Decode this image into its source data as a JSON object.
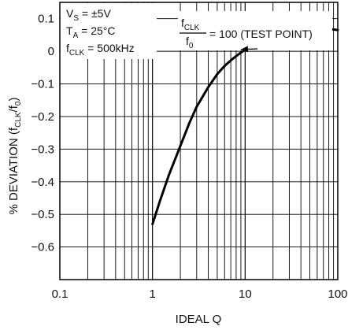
{
  "chart_data": {
    "type": "line",
    "xlabel": "IDEAL Q",
    "ylabel": "% DEVIATION (fCLK/f0)",
    "xscale": "log",
    "xlim": [
      0.1,
      100
    ],
    "ylim": [
      -0.7,
      0.15
    ],
    "grid": true,
    "xticks": [
      "0.1",
      "1",
      "10",
      "100"
    ],
    "yticks": [
      "0.1",
      "0",
      "−0.1",
      "−0.2",
      "−0.3",
      "−0.4",
      "−0.5",
      "−0.6"
    ],
    "series": [
      {
        "x": [
          1,
          1.2,
          1.5,
          2,
          2.5,
          3,
          4,
          5,
          6,
          7,
          8,
          9,
          10,
          12,
          15,
          20,
          25,
          30,
          40,
          50,
          60,
          70,
          80,
          90,
          100
        ],
        "y": [
          -0.53,
          -0.46,
          -0.38,
          -0.29,
          -0.22,
          -0.17,
          -0.11,
          -0.07,
          -0.045,
          -0.028,
          -0.015,
          -0.004,
          0.005,
          0.02,
          0.035,
          0.048,
          0.055,
          0.06,
          0.065,
          0.068,
          0.069,
          0.069,
          0.068,
          0.067,
          0.065
        ]
      }
    ],
    "annotations": {
      "conditions": [
        {
          "main": "V",
          "sub": "S",
          "rest": " = ±5V"
        },
        {
          "main": "T",
          "sub": "A",
          "rest": " = 25°C"
        },
        {
          "main": "f",
          "sub": "CLK",
          "rest": " = 500kHz"
        }
      ],
      "ratio": {
        "num_main": "f",
        "num_sub": "CLK",
        "den_main": "f",
        "den_sub": "0",
        "rest": "= 100 (TEST POINT)"
      },
      "arrow_target": {
        "x": 9,
        "y": -0.004
      }
    }
  }
}
